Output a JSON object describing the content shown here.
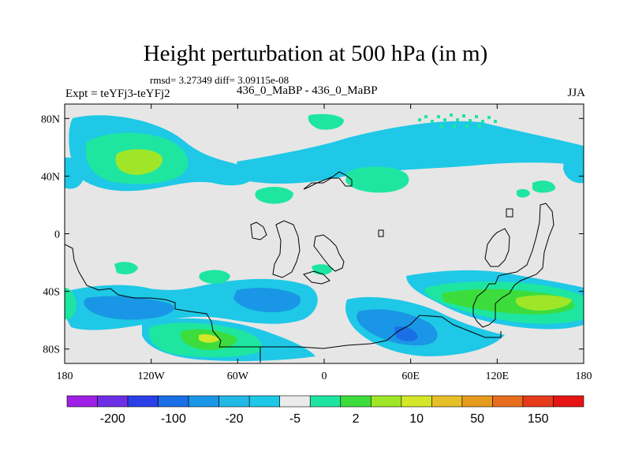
{
  "title": "Height perturbation at 500 hPa (in m)",
  "stats": "rmsd= 3.27349 diff= 3.09115e-08",
  "expt": "Expt = teYFj3-teYFj2",
  "subtitle": "436_0_MaBP - 436_0_MaBP",
  "season": "JJA",
  "map": {
    "xlim": [
      -180,
      180
    ],
    "ylim": [
      -90,
      90
    ],
    "x_ticks": [
      {
        "value": -180,
        "label": "180"
      },
      {
        "value": -120,
        "label": "120W"
      },
      {
        "value": -60,
        "label": "60W"
      },
      {
        "value": 0,
        "label": "0"
      },
      {
        "value": 60,
        "label": "60E"
      },
      {
        "value": 120,
        "label": "120E"
      },
      {
        "value": 180,
        "label": "180"
      }
    ],
    "y_ticks": [
      {
        "value": 80,
        "label": "80N"
      },
      {
        "value": 40,
        "label": "40N"
      },
      {
        "value": 0,
        "label": "0"
      },
      {
        "value": -40,
        "label": "40S"
      },
      {
        "value": -80,
        "label": "80S"
      }
    ],
    "background_color": "#e6e6e6"
  },
  "colorbar": {
    "labels": [
      "-200",
      "-100",
      "-20",
      "-5",
      "2",
      "10",
      "50",
      "150"
    ],
    "colors": [
      "#9e1fe6",
      "#6e2ee6",
      "#2a40e6",
      "#1a6ee6",
      "#1a96e6",
      "#22b8e6",
      "#1ec8e6",
      "#ebebeb",
      "#1ee6a0",
      "#3cdc3c",
      "#a0e628",
      "#d4e628",
      "#e6c028",
      "#e69a1e",
      "#e66e1e",
      "#e63a1a",
      "#e61414"
    ]
  }
}
